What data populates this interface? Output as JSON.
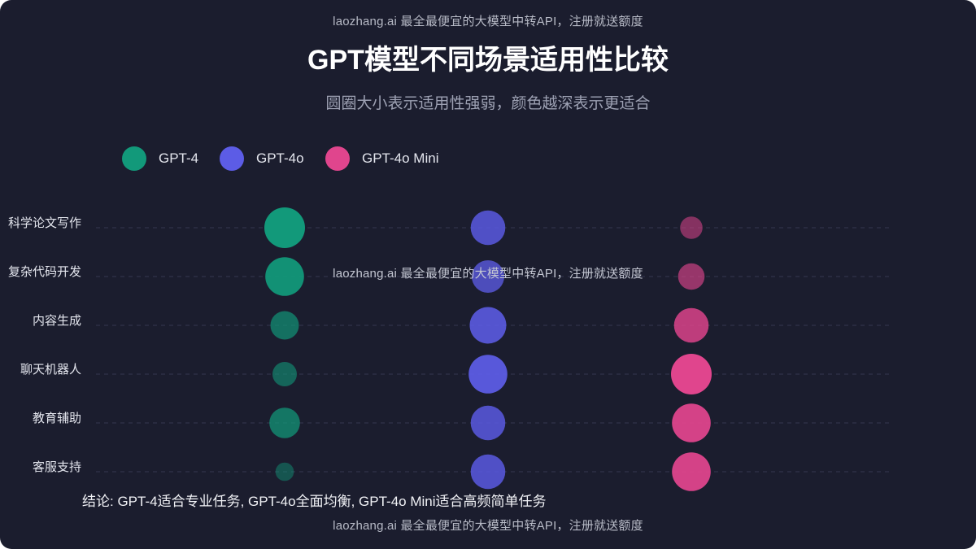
{
  "watermark": "laozhang.ai 最全最便宜的大模型中转API，注册就送额度",
  "title": "GPT模型不同场景适用性比较",
  "subtitle": "圆圈大小表示适用性强弱，颜色越深表示更适合",
  "conclusion": "结论: GPT-4适合专业任务, GPT-4o全面均衡, GPT-4o Mini适合高频简单任务",
  "colors": {
    "background": "#1b1d2e",
    "gpt4": "#12997a",
    "gpt4o": "#5c5ce6",
    "gpt4omini": "#e0458d"
  },
  "chart_data": {
    "type": "scatter",
    "title": "GPT模型不同场景适用性比较",
    "subtitle": "圆圈大小表示适用性强弱，颜色越深表示更适合",
    "categories": [
      "科学论文写作",
      "复杂代码开发",
      "内容生成",
      "聊天机器人",
      "教育辅助",
      "客服支持"
    ],
    "series": [
      {
        "name": "GPT-4",
        "color": "#12997a",
        "values": [
          10,
          9.5,
          7,
          6,
          7.5,
          4.5
        ]
      },
      {
        "name": "GPT-4o",
        "color": "#5c5ce6",
        "values": [
          8.5,
          8,
          9,
          9.5,
          8.5,
          8.5
        ]
      },
      {
        "name": "GPT-4o Mini",
        "color": "#e0458d",
        "values": [
          5.5,
          6.5,
          8.5,
          10,
          9.5,
          9.5
        ]
      }
    ],
    "max_value": 10,
    "legend": "top-left",
    "grid": "dashed horizontal"
  }
}
